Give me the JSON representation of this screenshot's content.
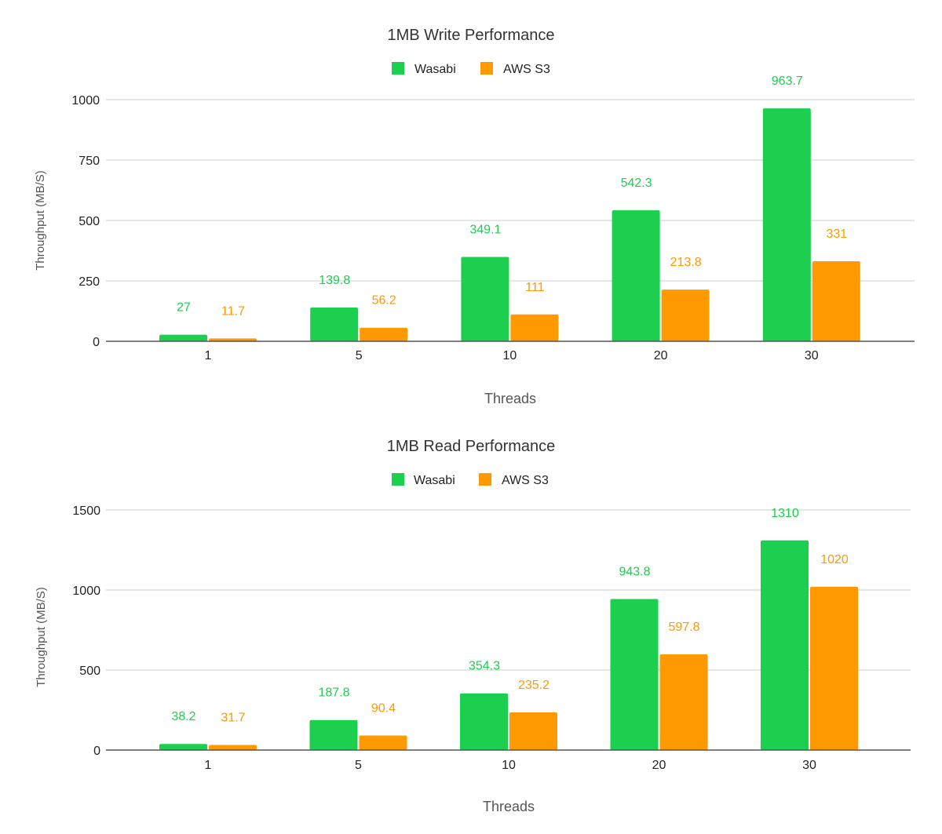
{
  "colors": {
    "wasabi": "#1ccf4e",
    "aws": "#ff9900",
    "grid": "#dddddd",
    "axis": "#555555"
  },
  "chart_data": [
    {
      "type": "bar",
      "title": "1MB Write Performance",
      "xlabel": "Threads",
      "ylabel": "Throughput (MB/S)",
      "categories": [
        "1",
        "5",
        "10",
        "20",
        "30"
      ],
      "ylim": [
        0,
        1000
      ],
      "yticks": [
        "0",
        "250",
        "500",
        "750",
        "1000"
      ],
      "grid": true,
      "legend_position": "top",
      "series": [
        {
          "name": "Wasabi",
          "values": [
            27,
            139.8,
            349.1,
            542.3,
            963.7
          ],
          "labels": [
            "27",
            "139.8",
            "349.1",
            "542.3",
            "963.7"
          ]
        },
        {
          "name": "AWS S3",
          "values": [
            11.7,
            56.2,
            111,
            213.8,
            331
          ],
          "labels": [
            "11.7",
            "56.2",
            "111",
            "213.8",
            "331"
          ]
        }
      ]
    },
    {
      "type": "bar",
      "title": "1MB Read Performance",
      "xlabel": "Threads",
      "ylabel": "Throughput (MB/S)",
      "categories": [
        "1",
        "5",
        "10",
        "20",
        "30"
      ],
      "ylim": [
        0,
        1500
      ],
      "yticks": [
        "0",
        "500",
        "1000",
        "1500"
      ],
      "grid": true,
      "legend_position": "top",
      "series": [
        {
          "name": "Wasabi",
          "values": [
            38.2,
            187.8,
            354.3,
            943.8,
            1310
          ],
          "labels": [
            "38.2",
            "187.8",
            "354.3",
            "943.8",
            "1310"
          ]
        },
        {
          "name": "AWS S3",
          "values": [
            31.7,
            90.4,
            235.2,
            597.8,
            1020
          ],
          "labels": [
            "31.7",
            "90.4",
            "235.2",
            "597.8",
            "1020"
          ]
        }
      ]
    }
  ]
}
